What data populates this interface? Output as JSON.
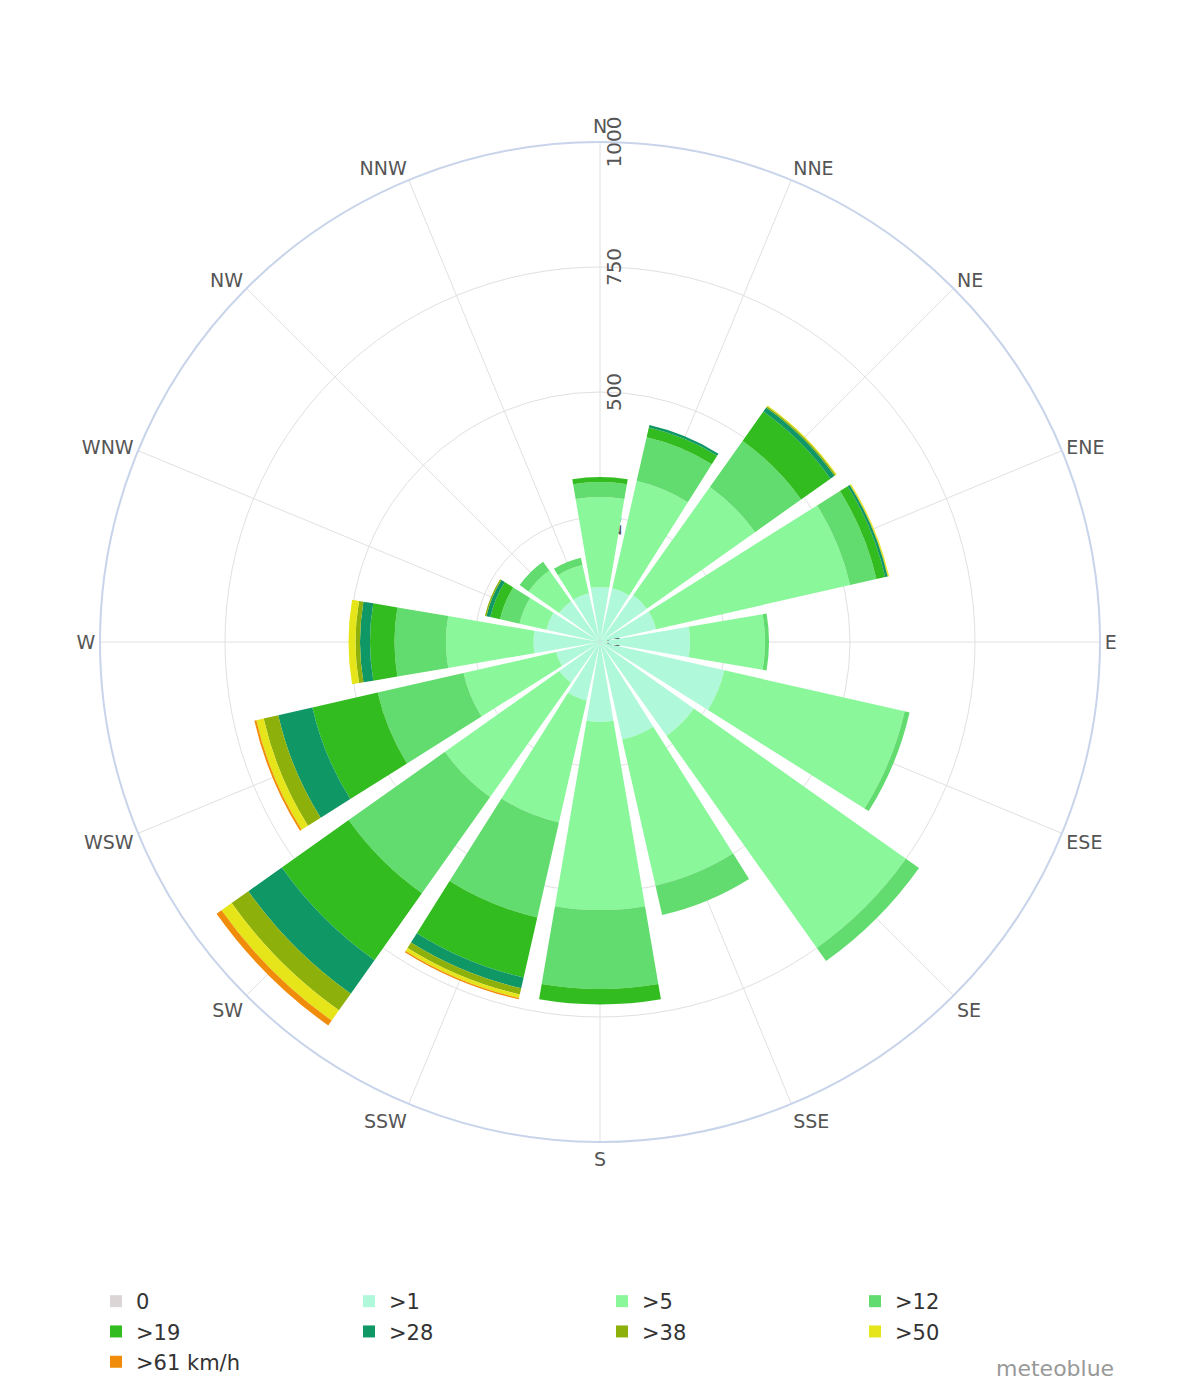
{
  "chart_data": {
    "type": "barpolar",
    "source": "meteoblue",
    "categories": [
      "N",
      "NNE",
      "NE",
      "ENE",
      "E",
      "ESE",
      "SE",
      "SSE",
      "S",
      "SSW",
      "SW",
      "WSW",
      "W",
      "WNW",
      "NW",
      "NNW"
    ],
    "ylim": [
      0,
      1000
    ],
    "yticks": [
      0,
      250,
      500,
      750,
      1000
    ],
    "grid": true,
    "stacked": true,
    "legend": "bottom",
    "series": [
      {
        "name": "0",
        "color": "#dbd5d6",
        "values": [
          0,
          0,
          0,
          0,
          0,
          0,
          0,
          0,
          0,
          0,
          0,
          0,
          0,
          0,
          0,
          0
        ]
      },
      {
        "name": ">1",
        "color": "#b0f8da",
        "values": [
          110,
          110,
          115,
          115,
          180,
          255,
          230,
          200,
          160,
          120,
          100,
          90,
          133,
          110,
          100,
          100
        ]
      },
      {
        "name": ">5",
        "color": "#8af79b",
        "values": [
          180,
          220,
          265,
          398,
          150,
          370,
          520,
          300,
          376,
          250,
          280,
          190,
          175,
          55,
          75,
          58
        ]
      },
      {
        "name": ">12",
        "color": "#62dc6e",
        "values": [
          30,
          90,
          113,
          54,
          8,
          10,
          32,
          60,
          158,
          195,
          236,
          176,
          103,
          40,
          22,
          15
        ]
      },
      {
        "name": ">19",
        "color": "#32bc1f",
        "values": [
          10,
          20,
          72,
          18,
          0,
          0,
          0,
          0,
          31,
          123,
          164,
          134,
          49,
          20,
          0,
          0
        ]
      },
      {
        "name": ">28",
        "color": "#109766",
        "values": [
          0,
          5,
          10,
          5,
          0,
          0,
          0,
          0,
          0,
          22,
          82,
          70,
          20,
          8,
          0,
          0
        ]
      },
      {
        "name": ">38",
        "color": "#8eb00b",
        "values": [
          0,
          0,
          3,
          1,
          0,
          0,
          0,
          0,
          0,
          13,
          41,
          30,
          9,
          3,
          0,
          0
        ]
      },
      {
        "name": ">50",
        "color": "#e5e51a",
        "values": [
          0,
          0,
          2,
          2,
          0,
          0,
          0,
          0,
          0,
          7,
          25,
          15,
          14,
          0,
          0,
          0
        ]
      },
      {
        "name": ">61 km/h",
        "color": "#f08c0a",
        "values": [
          0,
          0,
          0,
          0,
          0,
          0,
          0,
          0,
          0,
          3,
          12,
          4,
          0,
          0,
          0,
          0
        ]
      }
    ]
  }
}
